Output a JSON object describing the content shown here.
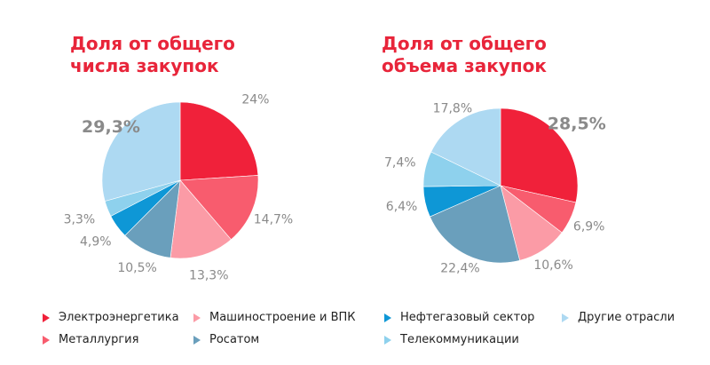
{
  "colors": {
    "title": "#e8253a",
    "label": "#8a8a8a"
  },
  "legend": [
    {
      "label": "Электроэнергетика",
      "color": "#f0213a",
      "icon": "triangle-right-icon"
    },
    {
      "label": "Металлургия",
      "color": "#f85c6e",
      "icon": "triangle-right-icon"
    },
    {
      "label": "Машиностроение и ВПК",
      "color": "#fb9ba6",
      "icon": "triangle-right-icon"
    },
    {
      "label": "Росатом",
      "color": "#6a9fbc",
      "icon": "triangle-right-icon"
    },
    {
      "label": "Нефтегазовый сектор",
      "color": "#0e97d6",
      "icon": "triangle-right-icon"
    },
    {
      "label": "Телекоммуникации",
      "color": "#8ed1ed",
      "icon": "triangle-right-icon"
    },
    {
      "label": "Другие отрасли",
      "color": "#add9f2",
      "icon": "triangle-right-icon"
    }
  ],
  "chart_data": [
    {
      "type": "pie",
      "title": "Доля от общего числа закупок",
      "title_lines": [
        "Доля от общего",
        "числа закупок"
      ],
      "slices": [
        {
          "name": "Электроэнергетика",
          "value": 24,
          "label": "24%"
        },
        {
          "name": "Металлургия",
          "value": 14.7,
          "label": "14,7%"
        },
        {
          "name": "Машиностроение и ВПК",
          "value": 13.3,
          "label": "13,3%"
        },
        {
          "name": "Росатом",
          "value": 10.5,
          "label": "10,5%"
        },
        {
          "name": "Нефтегазовый сектор",
          "value": 4.9,
          "label": "4,9%"
        },
        {
          "name": "Телекоммуникации",
          "value": 3.3,
          "label": "3,3%"
        },
        {
          "name": "Другие отрасли",
          "value": 29.3,
          "label": "29,3%"
        }
      ]
    },
    {
      "type": "pie",
      "title": "Доля от общего объема закупок",
      "title_lines": [
        "Доля от общего",
        "объема закупок"
      ],
      "slices": [
        {
          "name": "Электроэнергетика",
          "value": 28.5,
          "label": "28,5%"
        },
        {
          "name": "Металлургия",
          "value": 6.9,
          "label": "6,9%"
        },
        {
          "name": "Машиностроение и ВПК",
          "value": 10.6,
          "label": "10,6%"
        },
        {
          "name": "Росатом",
          "value": 22.4,
          "label": "22,4%"
        },
        {
          "name": "Нефтегазовый сектор",
          "value": 6.4,
          "label": "6,4%"
        },
        {
          "name": "Телекоммуникации",
          "value": 7.4,
          "label": "7,4%"
        },
        {
          "name": "Другие отрасли",
          "value": 17.8,
          "label": "17,8%"
        }
      ]
    }
  ]
}
